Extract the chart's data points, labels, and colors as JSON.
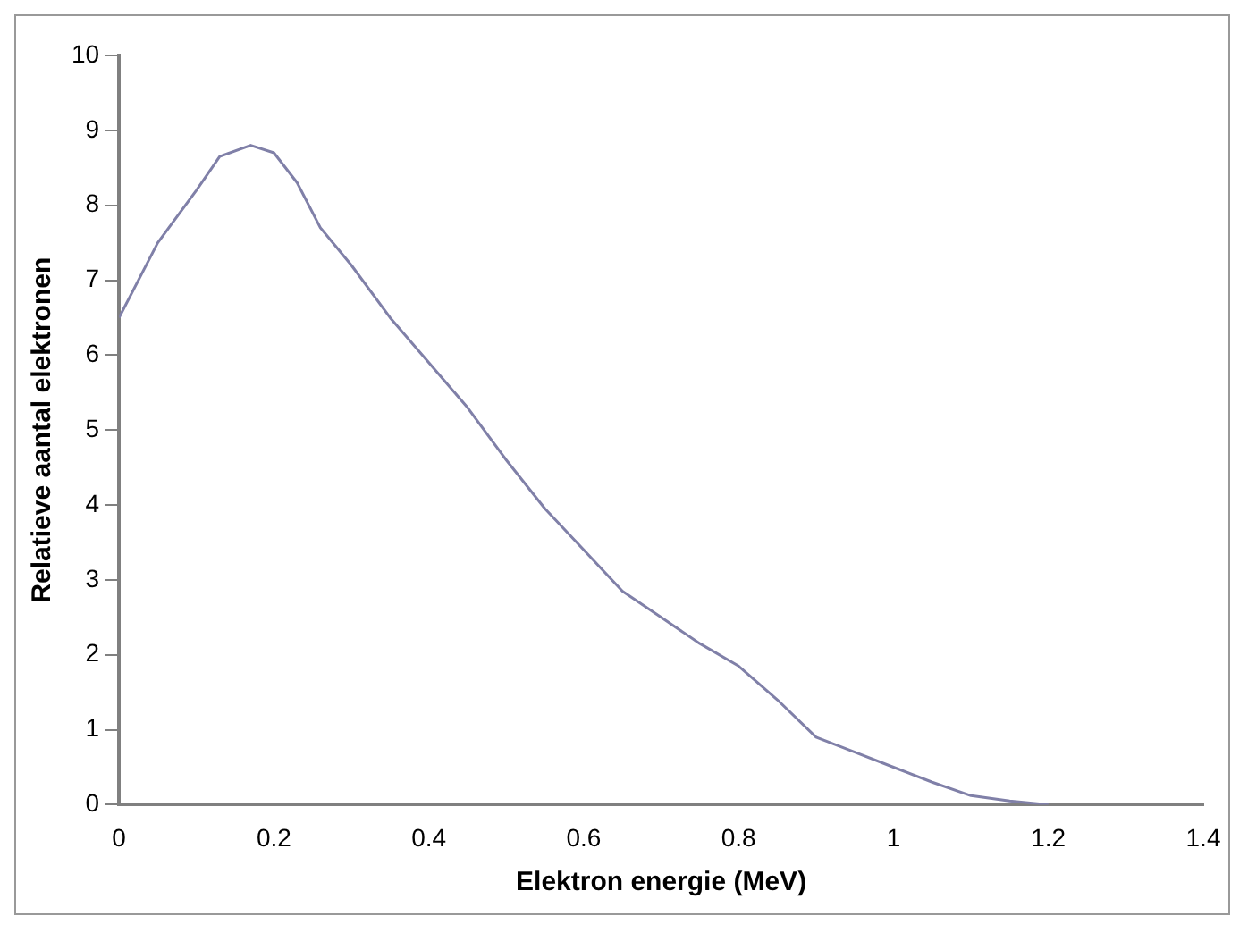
{
  "chart_data": {
    "type": "line",
    "xlabel": "Elektron energie (MeV)",
    "ylabel": "Relatieve aantal elektronen",
    "x": [
      0,
      0.05,
      0.1,
      0.13,
      0.17,
      0.2,
      0.23,
      0.26,
      0.3,
      0.35,
      0.4,
      0.45,
      0.5,
      0.55,
      0.6,
      0.65,
      0.7,
      0.75,
      0.8,
      0.85,
      0.9,
      0.95,
      1.0,
      1.05,
      1.1,
      1.15,
      1.2
    ],
    "series": [
      {
        "color": "#8080a8",
        "values": [
          6.5,
          7.5,
          8.2,
          8.65,
          8.8,
          8.7,
          8.3,
          7.7,
          7.2,
          6.5,
          5.9,
          5.3,
          4.6,
          3.95,
          3.4,
          2.85,
          2.5,
          2.15,
          1.85,
          1.4,
          0.9,
          0.7,
          0.5,
          0.3,
          0.12,
          0.05,
          0
        ]
      }
    ],
    "xlim": [
      0,
      1.4
    ],
    "xticks": [
      0,
      0.2,
      0.4,
      0.6,
      0.8,
      1,
      1.2,
      1.4
    ],
    "ylim": [
      0,
      10
    ],
    "yticks": [
      0,
      1,
      2,
      3,
      4,
      5,
      6,
      7,
      8,
      9,
      10
    ],
    "grid": false,
    "legend": false,
    "marker": "none",
    "line_style": "solid"
  }
}
